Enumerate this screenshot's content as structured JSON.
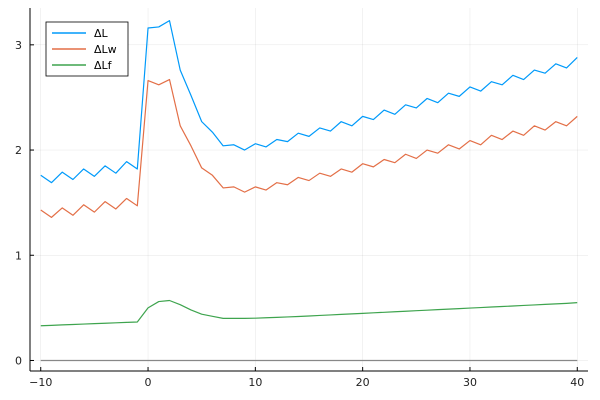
{
  "chart_data": {
    "type": "line",
    "title": "",
    "xlabel": "",
    "ylabel": "",
    "xlim": [
      -11,
      41
    ],
    "ylim": [
      -0.1,
      3.35
    ],
    "xticks": [
      -10,
      0,
      10,
      20,
      30,
      40
    ],
    "yticks": [
      0,
      1,
      2,
      3
    ],
    "xtick_labels": [
      "−10",
      "0",
      "10",
      "20",
      "30",
      "40"
    ],
    "ytick_labels": [
      "0",
      "1",
      "2",
      "3"
    ],
    "grid": true,
    "legend_position": "top-left",
    "x": [
      -10,
      -9,
      -8,
      -7,
      -6,
      -5,
      -4,
      -3,
      -2,
      -1,
      0,
      1,
      2,
      3,
      4,
      5,
      6,
      7,
      8,
      9,
      10,
      11,
      12,
      13,
      14,
      15,
      16,
      17,
      18,
      19,
      20,
      21,
      22,
      23,
      24,
      25,
      26,
      27,
      28,
      29,
      30,
      31,
      32,
      33,
      34,
      35,
      36,
      37,
      38,
      39,
      40
    ],
    "series": [
      {
        "name": "ΔL",
        "color": "#009AFA",
        "values": [
          1.76,
          1.69,
          1.79,
          1.72,
          1.82,
          1.75,
          1.85,
          1.78,
          1.89,
          1.82,
          3.16,
          3.17,
          3.23,
          2.76,
          2.52,
          2.27,
          2.17,
          2.04,
          2.05,
          2.0,
          2.06,
          2.03,
          2.1,
          2.08,
          2.16,
          2.13,
          2.21,
          2.18,
          2.27,
          2.23,
          2.32,
          2.29,
          2.38,
          2.34,
          2.43,
          2.4,
          2.49,
          2.45,
          2.54,
          2.51,
          2.6,
          2.56,
          2.65,
          2.62,
          2.71,
          2.67,
          2.76,
          2.73,
          2.82,
          2.78,
          2.88
        ]
      },
      {
        "name": "ΔLw",
        "color": "#E36F47",
        "values": [
          1.43,
          1.36,
          1.45,
          1.38,
          1.48,
          1.41,
          1.51,
          1.44,
          1.54,
          1.47,
          2.66,
          2.62,
          2.67,
          2.23,
          2.04,
          1.83,
          1.76,
          1.64,
          1.65,
          1.6,
          1.65,
          1.62,
          1.69,
          1.67,
          1.74,
          1.71,
          1.78,
          1.75,
          1.82,
          1.79,
          1.87,
          1.84,
          1.91,
          1.88,
          1.96,
          1.92,
          2.0,
          1.97,
          2.05,
          2.01,
          2.09,
          2.05,
          2.14,
          2.1,
          2.18,
          2.14,
          2.23,
          2.19,
          2.27,
          2.23,
          2.32
        ]
      },
      {
        "name": "ΔLf",
        "color": "#3EA44E",
        "values": [
          0.33,
          0.334,
          0.338,
          0.342,
          0.346,
          0.35,
          0.354,
          0.358,
          0.362,
          0.366,
          0.5,
          0.56,
          0.57,
          0.53,
          0.48,
          0.44,
          0.42,
          0.4,
          0.4,
          0.4,
          0.402,
          0.406,
          0.41,
          0.414,
          0.418,
          0.423,
          0.428,
          0.433,
          0.438,
          0.443,
          0.448,
          0.453,
          0.458,
          0.463,
          0.468,
          0.473,
          0.478,
          0.483,
          0.488,
          0.493,
          0.498,
          0.503,
          0.508,
          0.513,
          0.518,
          0.523,
          0.528,
          0.533,
          0.538,
          0.543,
          0.55
        ]
      },
      {
        "name": "",
        "color": "#888888",
        "values": [
          0,
          0,
          0,
          0,
          0,
          0,
          0,
          0,
          0,
          0,
          0,
          0,
          0,
          0,
          0,
          0,
          0,
          0,
          0,
          0,
          0,
          0,
          0,
          0,
          0,
          0,
          0,
          0,
          0,
          0,
          0,
          0,
          0,
          0,
          0,
          0,
          0,
          0,
          0,
          0,
          0,
          0,
          0,
          0,
          0,
          0,
          0,
          0,
          0,
          0,
          0
        ]
      }
    ]
  }
}
